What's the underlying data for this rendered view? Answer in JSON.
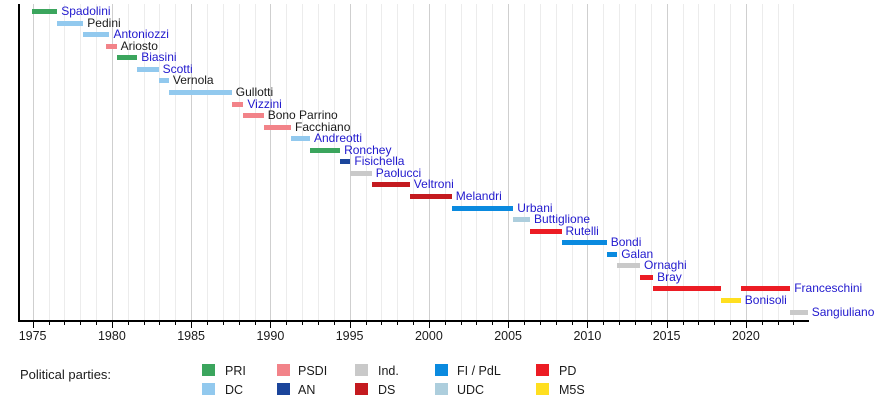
{
  "chart_data": {
    "type": "bar",
    "variant": "gantt-timeline",
    "description": "Timeline of Italian ministers of culture with party colors",
    "x_axis": {
      "range": [
        1974.11,
        2023.95
      ],
      "major_ticks": [
        1975,
        1980,
        1985,
        1990,
        1995,
        2000,
        2005,
        2010,
        2015,
        2020
      ],
      "minor_tick_interval": 1,
      "grid": "vertical, yearly minor lines and darker 5-year major lines"
    },
    "parties": {
      "PRI": "#3BA55D",
      "DC": "#92C9EE",
      "PSDI": "#F28389",
      "AN": "#1B459B",
      "Ind.": "#C9C9C9",
      "DS": "#C41A1F",
      "FI / PdL": "#0A8ADF",
      "UDC": "#ADCEDD",
      "PD": "#EC1C24",
      "M5S": "#FFDF20"
    },
    "link_color": "#2119CE",
    "plain_color": "#1A1A1A",
    "ministers": [
      {
        "name": "Spadolini",
        "party": "PRI",
        "link": true,
        "terms": [
          [
            1974.95,
            1976.55
          ]
        ]
      },
      {
        "name": "Pedini",
        "party": "DC",
        "link": false,
        "terms": [
          [
            1976.55,
            1978.2
          ]
        ]
      },
      {
        "name": "Antoniozzi",
        "party": "DC",
        "link": true,
        "terms": [
          [
            1978.2,
            1979.85
          ]
        ]
      },
      {
        "name": "Ariosto",
        "party": "PSDI",
        "link": false,
        "terms": [
          [
            1979.6,
            1980.3
          ]
        ]
      },
      {
        "name": "Biasini",
        "party": "PRI",
        "link": true,
        "terms": [
          [
            1980.3,
            1981.6
          ]
        ]
      },
      {
        "name": "Scotti",
        "party": "DC",
        "link": true,
        "terms": [
          [
            1981.6,
            1982.95
          ]
        ]
      },
      {
        "name": "Vernola",
        "party": "DC",
        "link": false,
        "terms": [
          [
            1982.95,
            1983.6
          ]
        ]
      },
      {
        "name": "Gullotti",
        "party": "DC",
        "link": false,
        "terms": [
          [
            1983.6,
            1987.57
          ]
        ]
      },
      {
        "name": "Vizzini",
        "party": "PSDI",
        "link": true,
        "terms": [
          [
            1987.57,
            1988.3
          ]
        ]
      },
      {
        "name": "Bono Parrino",
        "party": "PSDI",
        "link": false,
        "terms": [
          [
            1988.3,
            1989.58
          ]
        ]
      },
      {
        "name": "Facchiano",
        "party": "PSDI",
        "link": false,
        "terms": [
          [
            1989.58,
            1991.3
          ]
        ]
      },
      {
        "name": "Andreotti",
        "party": "DC",
        "link": true,
        "terms": [
          [
            1991.3,
            1992.5
          ]
        ]
      },
      {
        "name": "Ronchey",
        "party": "PRI",
        "link": true,
        "terms": [
          [
            1992.5,
            1994.4
          ]
        ]
      },
      {
        "name": "Fisichella",
        "party": "AN",
        "link": true,
        "terms": [
          [
            1994.4,
            1995.05
          ]
        ]
      },
      {
        "name": "Paolucci",
        "party": "Ind.",
        "link": true,
        "terms": [
          [
            1995.05,
            1996.4
          ]
        ]
      },
      {
        "name": "Veltroni",
        "party": "DS",
        "link": true,
        "terms": [
          [
            1996.4,
            1998.8
          ]
        ]
      },
      {
        "name": "Melandri",
        "party": "DS",
        "link": true,
        "terms": [
          [
            1998.8,
            2001.45
          ]
        ]
      },
      {
        "name": "Urbani",
        "party": "FI / PdL",
        "link": true,
        "terms": [
          [
            2001.45,
            2005.32
          ]
        ]
      },
      {
        "name": "Buttiglione",
        "party": "UDC",
        "link": true,
        "terms": [
          [
            2005.32,
            2006.38
          ]
        ]
      },
      {
        "name": "Rutelli",
        "party": "PD",
        "link": true,
        "terms": [
          [
            2006.38,
            2008.37
          ]
        ]
      },
      {
        "name": "Bondi",
        "party": "FI / PdL",
        "link": true,
        "terms": [
          [
            2008.37,
            2011.22
          ]
        ]
      },
      {
        "name": "Galan",
        "party": "FI / PdL",
        "link": true,
        "terms": [
          [
            2011.22,
            2011.88
          ]
        ]
      },
      {
        "name": "Ornaghi",
        "party": "Ind.",
        "link": true,
        "terms": [
          [
            2011.88,
            2013.32
          ]
        ]
      },
      {
        "name": "Bray",
        "party": "PD",
        "link": true,
        "terms": [
          [
            2013.32,
            2014.15
          ]
        ]
      },
      {
        "name": "Franceschini",
        "party": "PD",
        "link": true,
        "terms": [
          [
            2014.15,
            2018.42
          ],
          [
            2019.68,
            2022.8
          ]
        ]
      },
      {
        "name": "Bonisoli",
        "party": "M5S",
        "link": true,
        "terms": [
          [
            2018.42,
            2019.68
          ]
        ]
      },
      {
        "name": "Sangiuliano",
        "party": "Ind.",
        "link": true,
        "terms": [
          [
            2022.8,
            2023.9
          ]
        ]
      }
    ],
    "legend": {
      "label": "Political parties:",
      "items": [
        {
          "label": "PRI",
          "col": 0,
          "row": 0
        },
        {
          "label": "DC",
          "col": 0,
          "row": 1
        },
        {
          "label": "PSDI",
          "col": 1,
          "row": 0
        },
        {
          "label": "AN",
          "col": 1,
          "row": 1
        },
        {
          "label": "Ind.",
          "col": 2,
          "row": 0
        },
        {
          "label": "DS",
          "col": 2,
          "row": 1
        },
        {
          "label": "FI / PdL",
          "col": 3,
          "row": 0
        },
        {
          "label": "UDC",
          "col": 3,
          "row": 1
        },
        {
          "label": "PD",
          "col": 4,
          "row": 0
        },
        {
          "label": "M5S",
          "col": 4,
          "row": 1
        }
      ]
    }
  }
}
